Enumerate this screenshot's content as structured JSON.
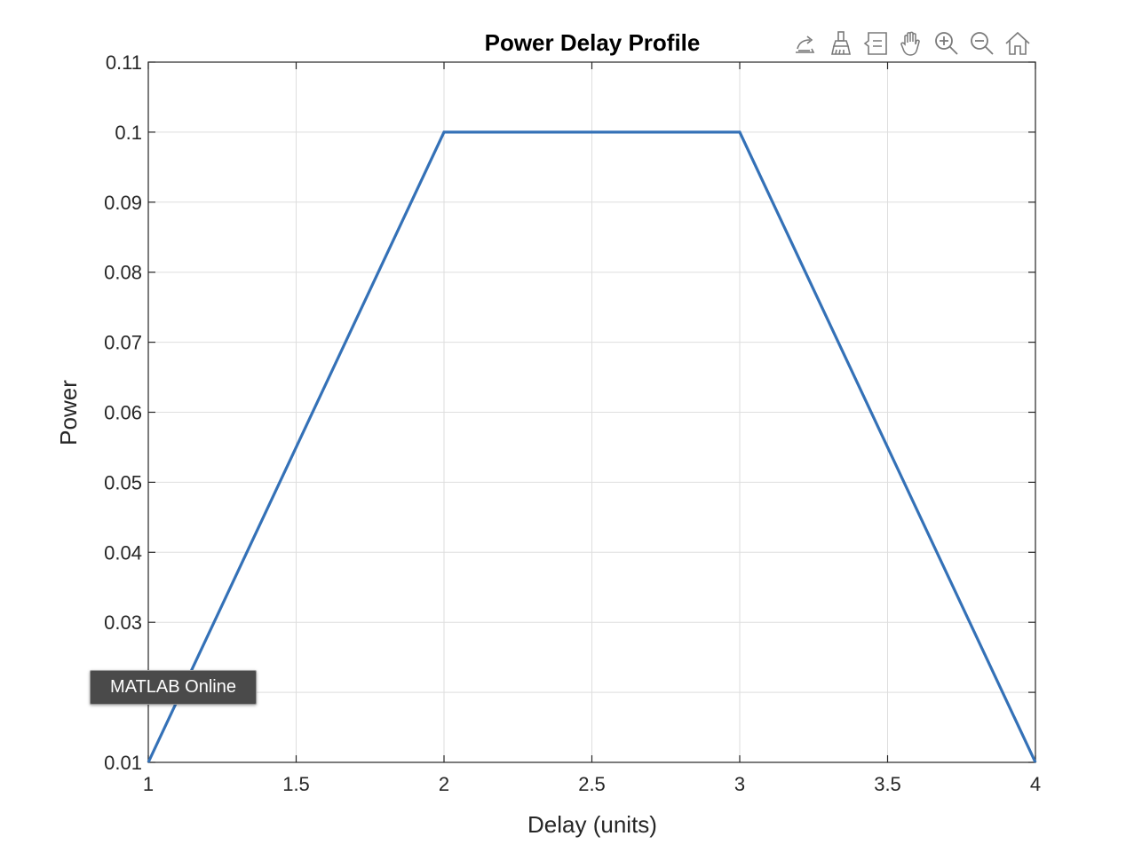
{
  "colors": {
    "series": "#3471b7",
    "grid": "#dedede",
    "axis": "#262626",
    "tooltip_bg": "#4a4a4a"
  },
  "toolbar": {
    "buttons": [
      {
        "icon": "export-icon",
        "name": "export-button"
      },
      {
        "icon": "brush-icon",
        "name": "brush-button"
      },
      {
        "icon": "data-tips-icon",
        "name": "data-tips-button"
      },
      {
        "icon": "pan-hand-icon",
        "name": "pan-button"
      },
      {
        "icon": "zoom-in-icon",
        "name": "zoom-in-button"
      },
      {
        "icon": "zoom-out-icon",
        "name": "zoom-out-button"
      },
      {
        "icon": "home-icon",
        "name": "restore-view-button"
      }
    ]
  },
  "tooltip": {
    "text": "MATLAB Online"
  },
  "chart_data": {
    "type": "line",
    "title": "Power Delay Profile",
    "xlabel": "Delay (units)",
    "ylabel": "Power",
    "xlim": [
      1,
      4
    ],
    "ylim": [
      0.01,
      0.11
    ],
    "grid": true,
    "box": true,
    "xticks": [
      1,
      1.5,
      2,
      2.5,
      3,
      3.5,
      4
    ],
    "xtick_labels": [
      "1",
      "1.5",
      "2",
      "2.5",
      "3",
      "3.5",
      "4"
    ],
    "yticks": [
      0.01,
      0.02,
      0.03,
      0.04,
      0.05,
      0.06,
      0.07,
      0.08,
      0.09,
      0.1,
      0.11
    ],
    "ytick_labels": [
      "0.01",
      "",
      "0.03",
      "0.04",
      "0.05",
      "0.06",
      "0.07",
      "0.08",
      "0.09",
      "0.1",
      "0.11"
    ],
    "series": [
      {
        "x": [
          1,
          2,
          3,
          4
        ],
        "values": [
          0.01,
          0.1,
          0.1,
          0.01
        ]
      }
    ]
  }
}
